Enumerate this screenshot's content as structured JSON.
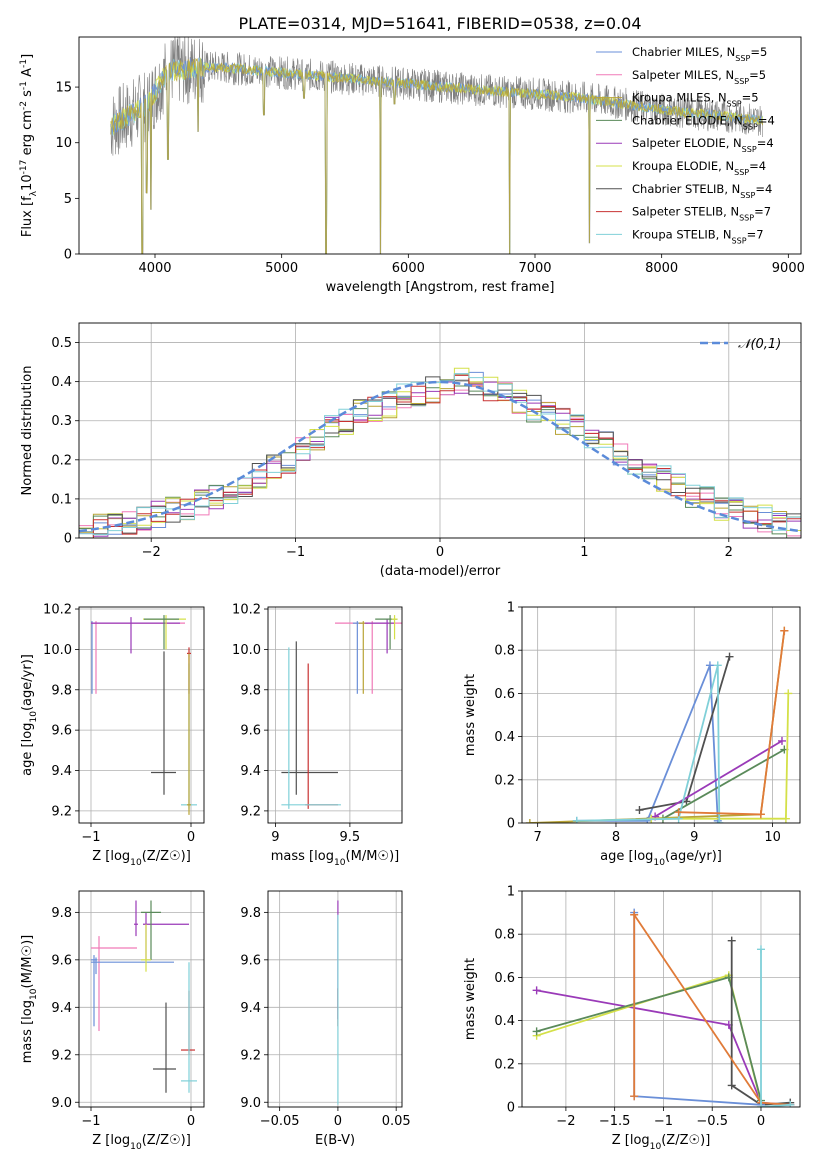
{
  "title": "PLATE=0314, MJD=51641, FIBERID=0538, z=0.04",
  "colors": {
    "series": [
      "#6a8fd8",
      "#f07ab8",
      "#b8a436",
      "#5a8a5a",
      "#9a3ab8",
      "#d4e048",
      "#505050",
      "#c83232",
      "#80d0d8"
    ],
    "spectrum_obs": "#808080",
    "normal_curve": "#5b8bd9",
    "orange": "#e07b39",
    "grid": "#b0b0b0"
  },
  "chart_data": [
    {
      "id": "spectrum",
      "type": "line",
      "xlabel": "wavelength [Angstrom, rest frame]",
      "ylabel": "Flux [f_λ10^-17 erg cm^-2 s^-1 A^-1]",
      "xlim": [
        3400,
        9100
      ],
      "ylim": [
        0,
        19.5
      ],
      "xticks": [
        4000,
        5000,
        6000,
        7000,
        8000,
        9000
      ],
      "yticks": [
        0,
        5,
        10,
        15
      ],
      "grid": false,
      "legend_position": "top-right",
      "legend": [
        {
          "model": "Chabrier MILES",
          "nssp": "5"
        },
        {
          "model": "Salpeter MILES",
          "nssp": "5"
        },
        {
          "model": "Kroupa MILES",
          "nssp": "5"
        },
        {
          "model": "Chabrier ELODIE",
          "nssp": "4"
        },
        {
          "model": "Salpeter ELODIE",
          "nssp": "4"
        },
        {
          "model": "Kroupa ELODIE",
          "nssp": "4"
        },
        {
          "model": "Chabrier STELIB",
          "nssp": "4"
        },
        {
          "model": "Salpeter STELIB",
          "nssp": "7"
        },
        {
          "model": "Kroupa STELIB",
          "nssp": "7"
        }
      ],
      "continuum": [
        [
          3650,
          11.5
        ],
        [
          3800,
          12.5
        ],
        [
          3950,
          13.5
        ],
        [
          4100,
          16.5
        ],
        [
          4500,
          16.8
        ],
        [
          5000,
          16.3
        ],
        [
          5500,
          15.8
        ],
        [
          6000,
          15.3
        ],
        [
          6500,
          14.8
        ],
        [
          7000,
          14.4
        ],
        [
          7400,
          14.0
        ],
        [
          7800,
          13.3
        ],
        [
          8200,
          12.7
        ],
        [
          8500,
          12.4
        ],
        [
          8800,
          12.0
        ]
      ],
      "absorption_features": [
        [
          3900,
          0.0
        ],
        [
          3933,
          5.5
        ],
        [
          3968,
          4.0
        ],
        [
          4101,
          8.5
        ],
        [
          4340,
          11.0
        ],
        [
          4861,
          12.5
        ],
        [
          5175,
          14.0
        ],
        [
          5350,
          0.0
        ],
        [
          5780,
          0.0
        ],
        [
          5890,
          13.5
        ],
        [
          6800,
          0.0
        ],
        [
          7430,
          1.0
        ]
      ]
    },
    {
      "id": "residuals",
      "type": "line",
      "xlabel": "(data-model)/error",
      "ylabel": "Normed distribution",
      "xlim": [
        -2.5,
        2.5
      ],
      "ylim": [
        0,
        0.55
      ],
      "xticks": [
        -2,
        -1,
        0,
        1,
        2
      ],
      "yticks": [
        0.0,
        0.1,
        0.2,
        0.3,
        0.4,
        0.5
      ],
      "grid": true,
      "legend_position": "top-right",
      "legend_label": "𝒩(0,1)",
      "hist_bin_width": 0.1,
      "hist_reference": [
        0.02,
        0.03,
        0.03,
        0.04,
        0.05,
        0.06,
        0.07,
        0.08,
        0.09,
        0.1,
        0.12,
        0.14,
        0.16,
        0.18,
        0.2,
        0.23,
        0.25,
        0.28,
        0.3,
        0.32,
        0.33,
        0.34,
        0.36,
        0.37,
        0.38,
        0.4,
        0.4,
        0.39,
        0.38,
        0.37,
        0.35,
        0.33,
        0.32,
        0.3,
        0.28,
        0.26,
        0.24,
        0.21,
        0.19,
        0.17,
        0.15,
        0.13,
        0.11,
        0.1,
        0.08,
        0.07,
        0.06,
        0.05,
        0.04,
        0.03
      ]
    },
    {
      "id": "z-age",
      "type": "scatter",
      "xlabel": "Z [log10(Z/Z☉)]",
      "ylabel": "age  [log10(age/yr)]",
      "xlim": [
        -1.12,
        0.13
      ],
      "ylim": [
        9.14,
        10.21
      ],
      "xticks": [
        -1,
        0
      ],
      "yticks": [
        9.2,
        9.4,
        9.6,
        9.8,
        10.0,
        10.2
      ],
      "grid": true,
      "points": [
        {
          "x": -0.99,
          "xerr": [
            0.01,
            0.01
          ],
          "y": 10.13,
          "yerr": [
            0.35,
            0.01
          ],
          "s": 0
        },
        {
          "x": -0.95,
          "xerr": [
            0.05,
            0.89
          ],
          "y": 10.13,
          "yerr": [
            0.35,
            0.01
          ],
          "s": 1
        },
        {
          "x": -0.6,
          "xerr": [
            0.4,
            0.49
          ],
          "y": 10.13,
          "yerr": [
            0.15,
            0.03
          ],
          "s": 4
        },
        {
          "x": -0.25,
          "xerr": [
            0.23,
            0.2
          ],
          "y": 10.15,
          "yerr": [
            0.15,
            0.02
          ],
          "s": 5
        },
        {
          "x": -0.27,
          "xerr": [
            0.2,
            0.15
          ],
          "y": 10.15,
          "yerr": [
            0.15,
            0.02
          ],
          "s": 3
        },
        {
          "x": -0.27,
          "xerr": [
            0.13,
            0.12
          ],
          "y": 9.39,
          "yerr": [
            0.11,
            0.6
          ],
          "s": 6
        },
        {
          "x": -0.02,
          "xerr": [
            0.02,
            0.02
          ],
          "y": 9.98,
          "yerr": [
            0.2,
            0.03
          ],
          "s": 7
        },
        {
          "x": -0.02,
          "xerr": [
            0.08,
            0.08
          ],
          "y": 9.23,
          "yerr": [
            0.02,
            0.7
          ],
          "s": 8
        },
        {
          "x": -0.02,
          "xerr": [
            0.02,
            0.02
          ],
          "y": 9.23,
          "yerr": [
            0.05,
            0.75
          ],
          "s": 2
        }
      ]
    },
    {
      "id": "mass-age",
      "type": "scatter",
      "xlabel": "mass [log10(M/M☉)]",
      "ylabel": "",
      "xlim": [
        8.95,
        9.85
      ],
      "ylim": [
        9.14,
        10.21
      ],
      "xticks": [
        9.0,
        9.5
      ],
      "yticks": [
        9.2,
        9.4,
        9.6,
        9.8,
        10.0,
        10.2
      ],
      "grid": true,
      "points": [
        {
          "x": 9.65,
          "xerr": [
            0.25,
            0.2
          ],
          "y": 10.13,
          "yerr": [
            0.35,
            0.01
          ],
          "s": 1
        },
        {
          "x": 9.55,
          "xerr": [
            0.03,
            0.03
          ],
          "y": 10.13,
          "yerr": [
            0.35,
            0.01
          ],
          "s": 0
        },
        {
          "x": 9.59,
          "xerr": [
            0.03,
            0.03
          ],
          "y": 10.13,
          "yerr": [
            0.35,
            0.01
          ],
          "s": 2
        },
        {
          "x": 9.75,
          "xerr": [
            0.15,
            0.05
          ],
          "y": 10.13,
          "yerr": [
            0.15,
            0.02
          ],
          "s": 4
        },
        {
          "x": 9.77,
          "xerr": [
            0.1,
            0.05
          ],
          "y": 10.15,
          "yerr": [
            0.15,
            0.02
          ],
          "s": 3
        },
        {
          "x": 9.8,
          "xerr": [
            0.02,
            0.02
          ],
          "y": 10.15,
          "yerr": [
            0.1,
            0.02
          ],
          "s": 5
        },
        {
          "x": 9.14,
          "xerr": [
            0.1,
            0.28
          ],
          "y": 9.39,
          "yerr": [
            0.11,
            0.65
          ],
          "s": 6
        },
        {
          "x": 9.22,
          "xerr": [
            0.02,
            0.2
          ],
          "y": 9.23,
          "yerr": [
            0.02,
            0.7
          ],
          "s": 7
        },
        {
          "x": 9.09,
          "xerr": [
            0.05,
            0.35
          ],
          "y": 9.23,
          "yerr": [
            0.02,
            0.78
          ],
          "s": 8
        }
      ]
    },
    {
      "id": "age-weight",
      "type": "line",
      "xlabel": "age  [log10(age/yr)]",
      "ylabel": "mass weight",
      "xlim": [
        6.8,
        10.35
      ],
      "ylim": [
        0,
        1.0
      ],
      "xticks": [
        7,
        8,
        9,
        10
      ],
      "yticks": [
        0.0,
        0.2,
        0.4,
        0.6,
        0.8,
        1.0
      ],
      "grid": true,
      "lines": [
        {
          "s": 0,
          "x": [
            7.5,
            8.4,
            9.2,
            9.3
          ],
          "y": [
            0.01,
            0.01,
            0.73,
            0.01
          ]
        },
        {
          "s": 2,
          "x": [
            6.9,
            9.85,
            10.15
          ],
          "y": [
            0.0,
            0.04,
            0.89
          ]
        },
        {
          "s": 6,
          "x": [
            8.3,
            8.9,
            9.45
          ],
          "y": [
            0.06,
            0.1,
            0.77
          ]
        },
        {
          "s": 3,
          "x": [
            8.6,
            10.15
          ],
          "y": [
            0.02,
            0.34
          ]
        },
        {
          "s": 4,
          "x": [
            8.5,
            10.12
          ],
          "y": [
            0.03,
            0.38
          ]
        },
        {
          "s": 5,
          "x": [
            8.45,
            10.17,
            10.2
          ],
          "y": [
            0.02,
            0.02,
            0.6
          ]
        },
        {
          "s": 8,
          "x": [
            7.5,
            8.8,
            9.3,
            9.32
          ],
          "y": [
            0.01,
            0.02,
            0.73,
            0.0
          ]
        },
        {
          "s": 9,
          "x": [
            8.8,
            9.85,
            10.15
          ],
          "y": [
            0.05,
            0.04,
            0.89
          ]
        }
      ]
    },
    {
      "id": "z-mass",
      "type": "scatter",
      "xlabel": "Z [log10(Z/Z☉)]",
      "ylabel": "mass [log10(M/M☉)]",
      "xlim": [
        -1.12,
        0.13
      ],
      "ylim": [
        8.98,
        9.89
      ],
      "xticks": [
        -1,
        0
      ],
      "yticks": [
        9.0,
        9.2,
        9.4,
        9.6,
        9.8
      ],
      "grid": true,
      "points": [
        {
          "x": -0.97,
          "xerr": [
            0.03,
            0.03
          ],
          "y": 9.6,
          "yerr": [
            0.28,
            0.02
          ],
          "s": 0
        },
        {
          "x": -0.92,
          "xerr": [
            0.08,
            0.38
          ],
          "y": 9.65,
          "yerr": [
            0.35,
            0.05
          ],
          "s": 1
        },
        {
          "x": -0.95,
          "xerr": [
            0.05,
            0.78
          ],
          "y": 9.59,
          "yerr": [
            0.05,
            0.02
          ],
          "s": 0
        },
        {
          "x": -0.95,
          "xerr": [
            0.05,
            0.78
          ],
          "y": 9.55,
          "yerr": [
            0.25,
            0.02
          ],
          "s": 9
        },
        {
          "x": -0.55,
          "xerr": [
            0.02,
            0.02
          ],
          "y": 9.75,
          "yerr": [
            0.05,
            0.1
          ],
          "s": 4
        },
        {
          "x": -0.45,
          "xerr": [
            0.03,
            0.43
          ],
          "y": 9.75,
          "yerr": [
            0.15,
            0.05
          ],
          "s": 4
        },
        {
          "x": -0.4,
          "xerr": [
            0.1,
            0.1
          ],
          "y": 9.8,
          "yerr": [
            0.2,
            0.05
          ],
          "s": 3
        },
        {
          "x": -0.45,
          "xerr": [
            0.05,
            0.05
          ],
          "y": 9.6,
          "yerr": [
            0.05,
            0.15
          ],
          "s": 5
        },
        {
          "x": -0.25,
          "xerr": [
            0.13,
            0.1
          ],
          "y": 9.14,
          "yerr": [
            0.1,
            0.28
          ],
          "s": 6
        },
        {
          "x": -0.02,
          "xerr": [
            0.08,
            0.06
          ],
          "y": 9.22,
          "yerr": [
            0.02,
            0.25
          ],
          "s": 7
        },
        {
          "x": -0.02,
          "xerr": [
            0.08,
            0.08
          ],
          "y": 9.09,
          "yerr": [
            0.05,
            0.5
          ],
          "s": 8
        }
      ]
    },
    {
      "id": "ebv-mass",
      "type": "scatter",
      "xlabel": "E(B-V)",
      "ylabel": "",
      "xlim": [
        -0.06,
        0.055
      ],
      "ylim": [
        8.98,
        9.89
      ],
      "xticks": [
        -0.05,
        0.0,
        0.05
      ],
      "yticks": [
        9.0,
        9.2,
        9.4,
        9.6,
        9.8
      ],
      "grid": true,
      "points": [
        {
          "x": 0.0,
          "xerr": [
            0,
            0
          ],
          "y": 9.6,
          "yerr": [
            0.25,
            0.25
          ],
          "s": 4
        },
        {
          "x": 0.0,
          "xerr": [
            0,
            0
          ],
          "y": 9.55,
          "yerr": [
            0.2,
            0.2
          ],
          "s": 9
        },
        {
          "x": 0.0,
          "xerr": [
            0,
            0
          ],
          "y": 9.4,
          "yerr": [
            0.08,
            0.08
          ],
          "s": 7
        },
        {
          "x": 0.0,
          "xerr": [
            0,
            0
          ],
          "y": 9.09,
          "yerr": [
            0.1,
            0.7
          ],
          "s": 8
        }
      ]
    },
    {
      "id": "z-weight",
      "type": "line",
      "xlabel": "Z [log10(Z/Z☉)]",
      "ylabel": "mass weight",
      "xlim": [
        -2.45,
        0.4
      ],
      "ylim": [
        0,
        1.0
      ],
      "xticks": [
        -2.0,
        -1.5,
        -1.0,
        -0.5,
        0.0
      ],
      "yticks": [
        0.0,
        0.2,
        0.4,
        0.6,
        0.8,
        1.0
      ],
      "grid": true,
      "lines": [
        {
          "s": 4,
          "x": [
            -2.3,
            -0.33,
            0.0,
            0.3
          ],
          "y": [
            0.54,
            0.38,
            0.02,
            0.01
          ]
        },
        {
          "s": 5,
          "x": [
            -2.3,
            -0.33,
            0.0
          ],
          "y": [
            0.33,
            0.61,
            0.02
          ]
        },
        {
          "s": 3,
          "x": [
            -2.3,
            -0.33,
            0.0
          ],
          "y": [
            0.35,
            0.6,
            0.03
          ]
        },
        {
          "s": 6,
          "x": [
            -0.3,
            -0.3,
            0.0,
            0.3
          ],
          "y": [
            0.77,
            0.1,
            0.01,
            0.02
          ]
        },
        {
          "s": 0,
          "x": [
            -1.3,
            -1.3,
            0.0
          ],
          "y": [
            0.9,
            0.05,
            0.01
          ]
        },
        {
          "s": 9,
          "x": [
            -1.3,
            -1.3,
            0.0,
            0.3
          ],
          "y": [
            0.05,
            0.89,
            0.02,
            0.01
          ]
        },
        {
          "s": 8,
          "x": [
            0.0,
            0.0,
            0.3
          ],
          "y": [
            0.73,
            0.0,
            0.01
          ]
        }
      ]
    }
  ]
}
